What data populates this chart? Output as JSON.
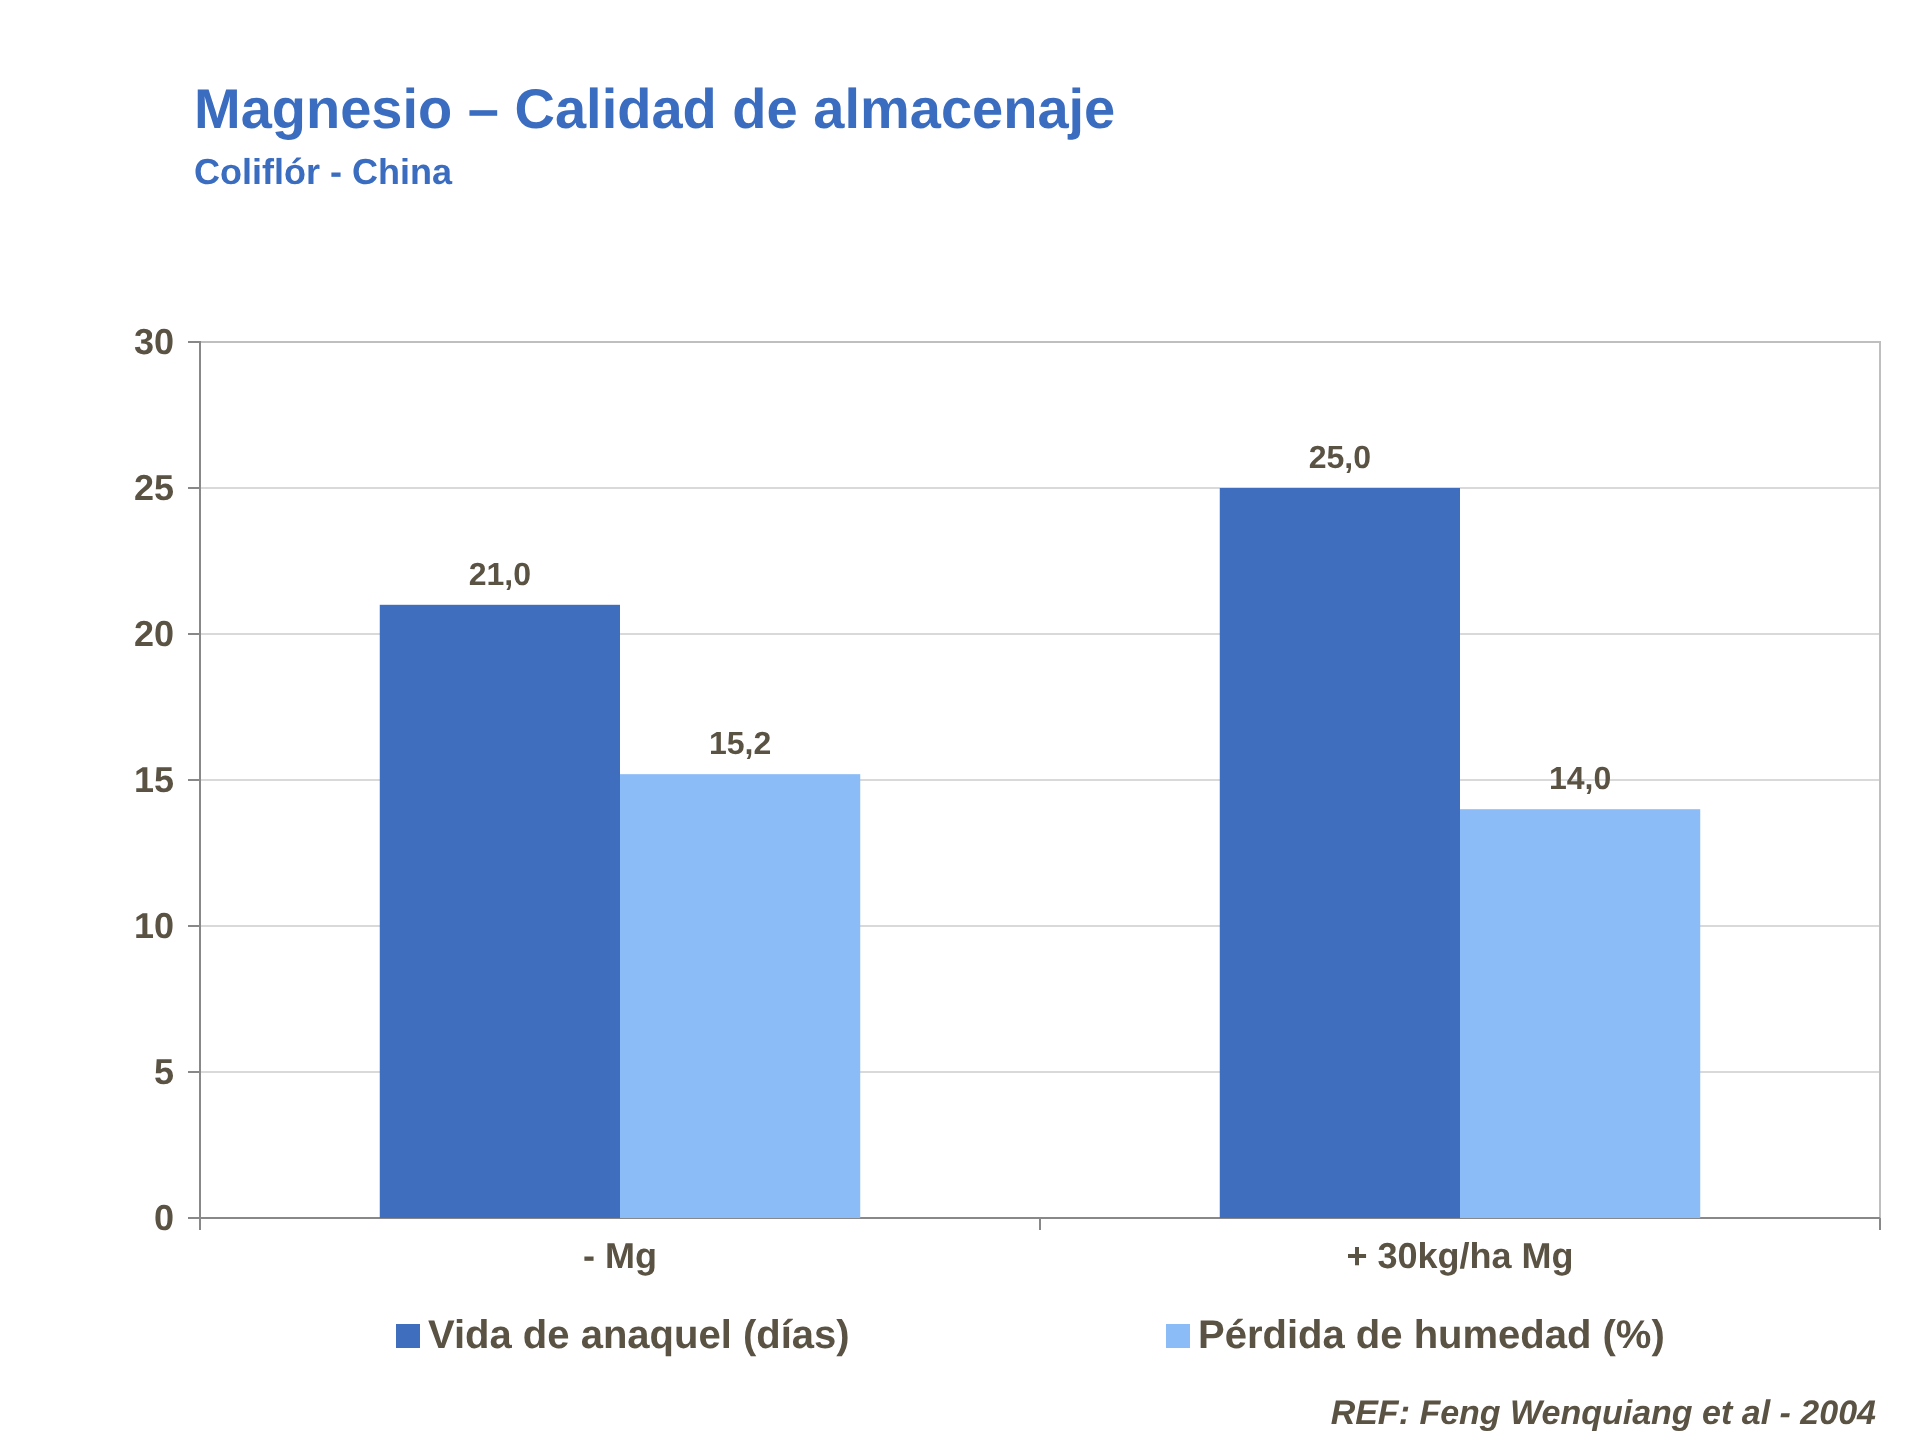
{
  "chart_data": {
    "type": "bar",
    "title": "Magnesio – Calidad de almacenaje",
    "subtitle": "Coliflór - China",
    "categories": [
      "- Mg",
      "+ 30kg/ha Mg"
    ],
    "series": [
      {
        "name": "Vida de anaquel (días)",
        "color": "#3f6ebe",
        "values": [
          21.0,
          25.0
        ],
        "value_labels": [
          "21,0",
          "25,0"
        ]
      },
      {
        "name": "Pérdida de humedad (%)",
        "color": "#8bbcf8",
        "values": [
          15.2,
          14.0
        ],
        "value_labels": [
          "15,2",
          "14,0"
        ]
      }
    ],
    "ylim": [
      0,
      30
    ],
    "yticks": [
      0,
      5,
      10,
      15,
      20,
      25,
      30
    ],
    "grid": "y",
    "legend": "bottom",
    "annotations": [
      "REF: Feng Wenquiang et al - 2004"
    ]
  }
}
